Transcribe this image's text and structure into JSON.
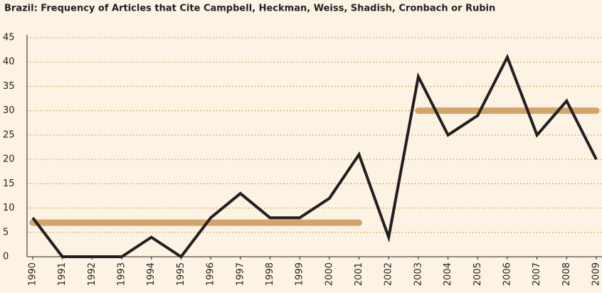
{
  "chart_data": {
    "type": "line",
    "title": "Brazil: Frequency of Articles that Cite Campbell, Heckman, Weiss, Shadish, Cronbach or Rubin",
    "categories": [
      "1990",
      "1991",
      "1992",
      "1993",
      "1994",
      "1995",
      "1996",
      "1997",
      "1998",
      "1999",
      "2000",
      "2001",
      "2002",
      "2003",
      "2004",
      "2005",
      "2006",
      "2007",
      "2008",
      "2009"
    ],
    "series": [
      {
        "color": "#d4a56a",
        "values": [
          7,
          7,
          7,
          7,
          7,
          7,
          7,
          7,
          7,
          7,
          7,
          7,
          null,
          30,
          30,
          30,
          30,
          30,
          30,
          30
        ]
      },
      {
        "color": "#231f20",
        "values": [
          8,
          0,
          0,
          0,
          4,
          0,
          8,
          13,
          8,
          8,
          12,
          21,
          4,
          37,
          25,
          29,
          41,
          25,
          32,
          20
        ]
      }
    ],
    "ylim": [
      0,
      45
    ],
    "yticks": [
      0,
      5,
      10,
      15,
      20,
      25,
      30,
      35,
      40,
      45
    ],
    "grid": true
  }
}
